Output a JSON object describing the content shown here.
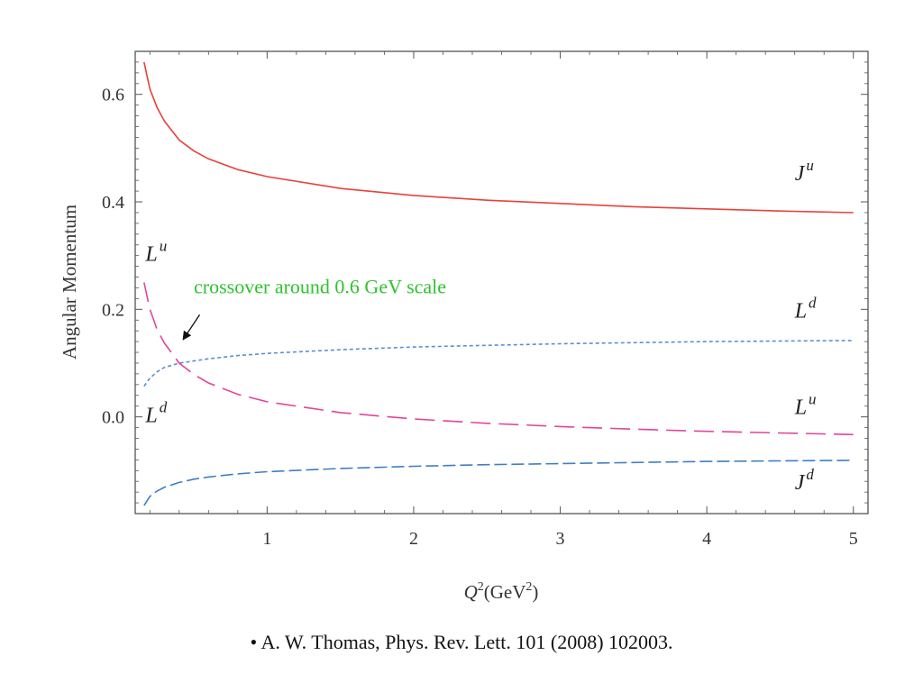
{
  "chart_data": {
    "type": "line",
    "xlabel": {
      "main": "Q",
      "sup1": "2",
      "unit": "(GeV",
      "sup2": "2",
      "close": ")"
    },
    "ylabel": "Angular Momentum",
    "xlim": [
      0.1,
      5.1
    ],
    "ylim": [
      -0.18,
      0.68
    ],
    "x_ticks": [
      1,
      2,
      3,
      4,
      5
    ],
    "x_tick_labels": [
      "1",
      "2",
      "3",
      "4",
      "5"
    ],
    "y_ticks": [
      0.0,
      0.2,
      0.4,
      0.6
    ],
    "y_tick_labels": [
      "0.0",
      "0.2",
      "0.4",
      "0.6"
    ],
    "grid": false,
    "series": [
      {
        "name": "J^u",
        "label": {
          "base": "J",
          "sup": "u"
        },
        "color": "#e8413a",
        "dash": "solid",
        "x": [
          0.16,
          0.2,
          0.25,
          0.3,
          0.4,
          0.5,
          0.6,
          0.8,
          1.0,
          1.5,
          2.0,
          2.5,
          3.0,
          3.5,
          4.0,
          4.5,
          5.0
        ],
        "y": [
          0.66,
          0.61,
          0.575,
          0.55,
          0.515,
          0.495,
          0.48,
          0.46,
          0.447,
          0.425,
          0.412,
          0.403,
          0.397,
          0.391,
          0.387,
          0.383,
          0.38
        ]
      },
      {
        "name": "L^d",
        "label": {
          "base": "L",
          "sup": "d"
        },
        "color": "#5b8fd0",
        "dash": "4,3",
        "x": [
          0.16,
          0.2,
          0.25,
          0.3,
          0.4,
          0.5,
          0.6,
          0.8,
          1.0,
          1.5,
          2.0,
          2.5,
          3.0,
          3.5,
          4.0,
          4.5,
          5.0
        ],
        "y": [
          0.057,
          0.072,
          0.084,
          0.092,
          0.1,
          0.104,
          0.108,
          0.114,
          0.118,
          0.125,
          0.13,
          0.133,
          0.136,
          0.138,
          0.14,
          0.141,
          0.142
        ]
      },
      {
        "name": "L^u",
        "label": {
          "base": "L",
          "sup": "u"
        },
        "color": "#e3449a",
        "dash": "22,9",
        "x": [
          0.16,
          0.2,
          0.25,
          0.3,
          0.4,
          0.5,
          0.6,
          0.8,
          1.0,
          1.5,
          2.0,
          2.5,
          3.0,
          3.5,
          4.0,
          4.5,
          5.0
        ],
        "y": [
          0.25,
          0.2,
          0.162,
          0.137,
          0.1,
          0.079,
          0.063,
          0.042,
          0.028,
          0.008,
          -0.004,
          -0.012,
          -0.018,
          -0.023,
          -0.027,
          -0.03,
          -0.033
        ]
      },
      {
        "name": "J^d",
        "label": {
          "base": "J",
          "sup": "d"
        },
        "color": "#3f7fc1",
        "dash": "14,5",
        "x": [
          0.16,
          0.2,
          0.25,
          0.3,
          0.4,
          0.5,
          0.6,
          0.8,
          1.0,
          1.5,
          2.0,
          2.5,
          3.0,
          3.5,
          4.0,
          4.5,
          5.0
        ],
        "y": [
          -0.165,
          -0.148,
          -0.138,
          -0.131,
          -0.122,
          -0.116,
          -0.112,
          -0.106,
          -0.102,
          -0.096,
          -0.092,
          -0.089,
          -0.087,
          -0.085,
          -0.083,
          -0.082,
          -0.081
        ]
      }
    ],
    "curve_labels": [
      {
        "name": "label-J-u",
        "base": "J",
        "sup": "u",
        "x": 4.6,
        "y": 0.44
      },
      {
        "name": "label-L-u-left",
        "base": "L",
        "sup": "u",
        "x": 0.17,
        "y": 0.29
      },
      {
        "name": "label-L-d-right",
        "base": "L",
        "sup": "d",
        "x": 4.6,
        "y": 0.185
      },
      {
        "name": "label-L-d-left",
        "base": "L",
        "sup": "d",
        "x": 0.17,
        "y": -0.01
      },
      {
        "name": "label-L-u-right",
        "base": "L",
        "sup": "u",
        "x": 4.6,
        "y": 0.005
      },
      {
        "name": "label-J-d",
        "base": "J",
        "sup": "d",
        "x": 4.6,
        "y": -0.135
      }
    ],
    "annotation": {
      "text": "crossover around 0.6 GeV scale",
      "color": "#2ec22e",
      "x": 0.5,
      "y": 0.23,
      "arrow_from": [
        0.54,
        0.19
      ],
      "arrow_to": [
        0.43,
        0.145
      ]
    }
  },
  "citation": "• A. W. Thomas, Phys. Rev. Lett. 101 (2008) 102003."
}
